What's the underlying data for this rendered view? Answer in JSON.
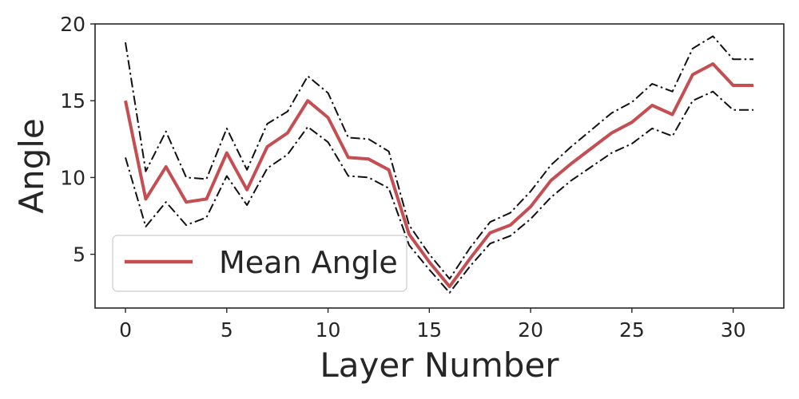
{
  "chart_data": {
    "type": "line",
    "xlabel": "Layer Number",
    "ylabel": "Angle",
    "xlim": [
      -1.5,
      32.5
    ],
    "ylim": [
      1.5,
      20.0
    ],
    "xticks": [
      0,
      5,
      10,
      15,
      20,
      25,
      30
    ],
    "yticks": [
      5,
      10,
      15,
      20
    ],
    "grid": false,
    "legend_position": "lower-left",
    "x": [
      0,
      1,
      2,
      3,
      4,
      5,
      6,
      7,
      8,
      9,
      10,
      11,
      12,
      13,
      14,
      15,
      16,
      17,
      18,
      19,
      20,
      21,
      22,
      23,
      24,
      25,
      26,
      27,
      28,
      29,
      30,
      31
    ],
    "series": [
      {
        "name": "Mean Angle",
        "role": "mean",
        "color": "#c44e52",
        "style": "solid",
        "values": [
          15.0,
          8.6,
          10.7,
          8.4,
          8.6,
          11.6,
          9.2,
          12.0,
          12.9,
          15.0,
          13.9,
          11.3,
          11.2,
          10.5,
          6.3,
          4.5,
          2.9,
          4.7,
          6.4,
          6.9,
          8.1,
          9.8,
          10.9,
          11.9,
          12.9,
          13.6,
          14.7,
          14.1,
          16.7,
          17.4,
          16.0,
          16.0
        ]
      },
      {
        "role": "upper",
        "color": "#111111",
        "style": "dashdot",
        "values": [
          18.8,
          10.4,
          13.0,
          10.0,
          9.9,
          13.2,
          10.5,
          13.5,
          14.3,
          16.6,
          15.5,
          12.6,
          12.5,
          11.7,
          6.9,
          5.0,
          3.4,
          5.4,
          7.1,
          7.7,
          9.1,
          10.8,
          12.0,
          13.1,
          14.2,
          14.9,
          16.1,
          15.6,
          18.4,
          19.2,
          17.7,
          17.7
        ]
      },
      {
        "role": "lower",
        "color": "#111111",
        "style": "dashdot",
        "values": [
          11.3,
          6.8,
          8.4,
          6.9,
          7.4,
          10.1,
          8.2,
          10.6,
          11.5,
          13.3,
          12.3,
          10.1,
          10.0,
          9.3,
          5.6,
          4.0,
          2.5,
          4.2,
          5.7,
          6.2,
          7.3,
          8.7,
          9.8,
          10.7,
          11.6,
          12.2,
          13.2,
          12.7,
          15.0,
          15.6,
          14.4,
          14.4
        ]
      }
    ],
    "legend": {
      "entries": [
        {
          "label": "Mean Angle",
          "color": "#c44e52"
        }
      ]
    }
  }
}
